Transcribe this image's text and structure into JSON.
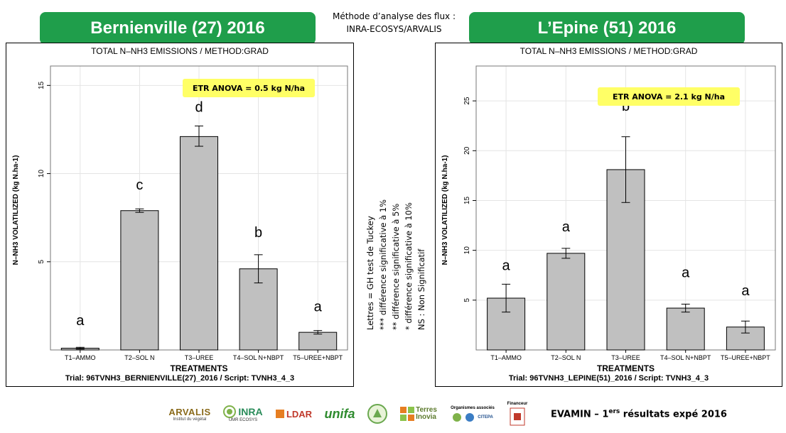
{
  "header": {
    "left_banner": "Bernienville (27) 2016",
    "right_banner": "L’Epine (51) 2016",
    "method_line1": "Méthode d’analyse des flux :",
    "method_line2": "INRA-ECOSYS/ARVALIS"
  },
  "legend": {
    "lines": [
      "Lettres = GH test de Tuckey",
      "*** différence significative à 1%",
      "** différence significative à 5%",
      "* différence significative à 10%",
      "NS : Non Significatif"
    ]
  },
  "footer": {
    "text_before": "EVAMIN – 1",
    "superscript": "ers",
    "text_after": " résultats expé 2016"
  },
  "logos": {
    "arvalis": "ARVALIS",
    "arvalis_sub": "Institut du végétal",
    "inra": "INRA",
    "inra_sub": "UMR ECOSYS",
    "ldar": "LDAR",
    "unifa": "unifa",
    "terres": "Terres",
    "inovia": "Inovia",
    "assoc_title": "Organismes associés",
    "citepa": "CITEPA",
    "financeur": "Financeur"
  },
  "colors": {
    "banner": "#1f9e4b",
    "bar": "#c0c0c0",
    "etr_box": "#ffff66"
  },
  "chart_data": [
    {
      "type": "bar",
      "title": "TOTAL N–NH3 EMISSIONS / METHOD:GRAD",
      "xlabel": "TREATMENTS",
      "ylabel": "N–NH3 VOLATILIZED (kg N.ha-1)",
      "categories": [
        "T1–AMMO",
        "T2–SOL N",
        "T3–UREE",
        "T4–SOL N+NBPT",
        "T5–UREE+NBPT"
      ],
      "values": [
        0.1,
        7.9,
        12.1,
        4.6,
        1.0
      ],
      "error_low": [
        0.05,
        7.8,
        11.55,
        3.8,
        0.9
      ],
      "error_high": [
        0.15,
        8.0,
        12.7,
        5.4,
        1.1
      ],
      "letters": [
        "a",
        "c",
        "d",
        "b",
        "a"
      ],
      "letter_at": [
        1.4,
        9.1,
        13.5,
        6.4,
        2.2
      ],
      "yticks": [
        5,
        10,
        15
      ],
      "ylim": [
        0,
        16.1
      ],
      "grid": true,
      "annotation": "ETR ANOVA = 0.5 kg N/ha",
      "footer": "Trial: 96TVNH3_BERNIENVILLE(27)_2016  /  Script: TVNH3_4_3"
    },
    {
      "type": "bar",
      "title": "TOTAL N–NH3 EMISSIONS / METHOD:GRAD",
      "xlabel": "TREATMENTS",
      "ylabel": "N–NH3 VOLATILIZED (kg N.ha-1)",
      "categories": [
        "T1–AMMO",
        "T2–SOL N",
        "T3–UREE",
        "T4–SOL N+NBPT",
        "T5–UREE+NBPT"
      ],
      "values": [
        5.2,
        9.7,
        18.1,
        4.2,
        2.3
      ],
      "error_low": [
        3.8,
        9.2,
        14.8,
        3.8,
        1.7
      ],
      "error_high": [
        6.6,
        10.2,
        21.4,
        4.6,
        2.9
      ],
      "letters": [
        "a",
        "a",
        "b",
        "a",
        "a"
      ],
      "letter_at": [
        8.0,
        11.9,
        24.0,
        7.3,
        5.5
      ],
      "yticks": [
        5,
        10,
        15,
        20,
        25
      ],
      "ylim": [
        0,
        28.5
      ],
      "grid": true,
      "annotation": "ETR ANOVA = 2.1 kg N/ha",
      "footer": "Trial: 96TVNH3_LEPINE(51)_2016  /  Script: TVNH3_4_3"
    }
  ]
}
